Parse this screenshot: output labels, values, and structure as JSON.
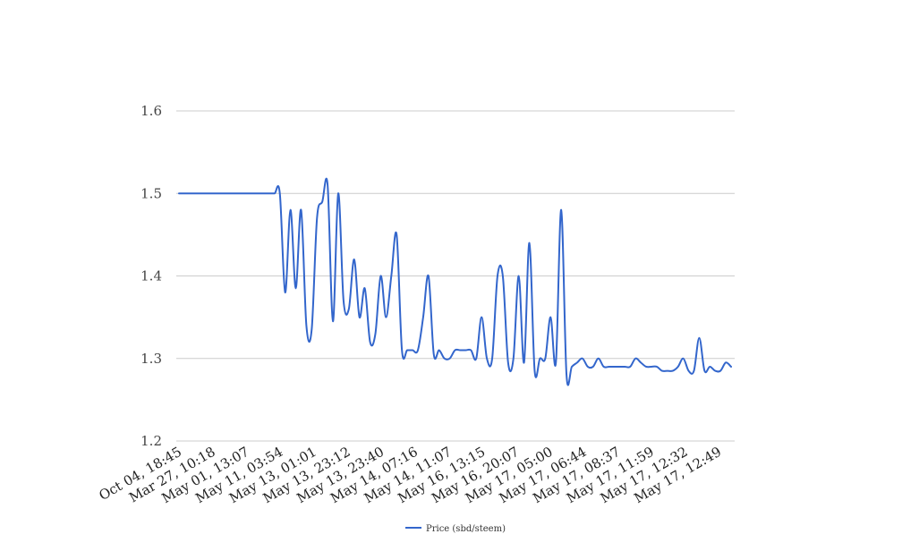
{
  "chart_data": {
    "type": "line",
    "title": "",
    "xlabel": "",
    "ylabel": "",
    "ylim": [
      1.2,
      1.6
    ],
    "y_ticks": [
      "1.2",
      "1.3",
      "1.4",
      "1.5",
      "1.6"
    ],
    "x_tick_labels": [
      "Oct 04, 18:45",
      "Mar 27, 10:18",
      "May 01, 13:07",
      "May 11, 03:54",
      "May 13, 01:01",
      "May 13, 23:12",
      "May 13, 23:40",
      "May 14, 07:16",
      "May 14, 11:07",
      "May 16, 13:15",
      "May 16, 20:07",
      "May 17, 05:00",
      "May 17, 06:44",
      "May 17, 08:37",
      "May 17, 11:59",
      "May 17, 12:32",
      "May 17, 12:49"
    ],
    "grid": true,
    "legend_position": "bottom",
    "series": [
      {
        "name": "Price (sbd/steem)",
        "color": "#3366cc",
        "values": [
          1.5,
          1.5,
          1.5,
          1.5,
          1.5,
          1.5,
          1.5,
          1.5,
          1.5,
          1.5,
          1.5,
          1.5,
          1.5,
          1.5,
          1.5,
          1.5,
          1.5,
          1.5,
          1.5,
          1.5,
          1.38,
          1.48,
          1.385,
          1.48,
          1.34,
          1.335,
          1.47,
          1.49,
          1.51,
          1.345,
          1.5,
          1.37,
          1.36,
          1.42,
          1.35,
          1.385,
          1.32,
          1.33,
          1.4,
          1.35,
          1.4,
          1.45,
          1.31,
          1.31,
          1.31,
          1.31,
          1.35,
          1.4,
          1.305,
          1.31,
          1.3,
          1.3,
          1.31,
          1.31,
          1.31,
          1.31,
          1.3,
          1.35,
          1.3,
          1.3,
          1.4,
          1.4,
          1.295,
          1.3,
          1.4,
          1.295,
          1.44,
          1.285,
          1.3,
          1.3,
          1.35,
          1.295,
          1.48,
          1.28,
          1.29,
          1.295,
          1.3,
          1.29,
          1.29,
          1.3,
          1.29,
          1.29,
          1.29,
          1.29,
          1.29,
          1.29,
          1.3,
          1.295,
          1.29,
          1.29,
          1.29,
          1.285,
          1.285,
          1.285,
          1.29,
          1.3,
          1.285,
          1.285,
          1.325,
          1.285,
          1.29,
          1.285,
          1.285,
          1.295,
          1.29
        ]
      }
    ]
  }
}
